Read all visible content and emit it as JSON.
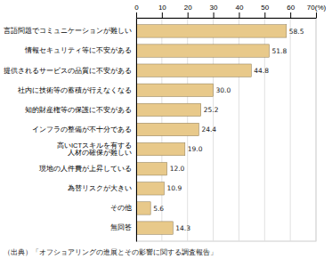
{
  "chart_data": {
    "type": "bar",
    "orientation": "horizontal",
    "categories": [
      "言語問題でコミュニケーションが難しい",
      "情報セキュリティ等に不安がある",
      "提供されるサービスの品質に不安がある",
      "社内に技術等の蓄積が行えなくなる",
      "知的財産権等の保護に不安がある",
      "インフラの整備が不十分である",
      "高いICTスキルを有する\n人材の確保が難しい",
      "現地の人件費が上昇している",
      "為替リスクが大きい",
      "その他",
      "無回答"
    ],
    "values": [
      58.5,
      51.8,
      44.8,
      30.0,
      25.2,
      24.4,
      19.0,
      12.0,
      10.9,
      5.6,
      14.3
    ],
    "value_labels": [
      "58.5",
      "51.8",
      "44.8",
      "30.0",
      "25.2",
      "24.4",
      "19.0",
      "12.0",
      "10.9",
      "5.6",
      "14.3"
    ],
    "data_labels": true,
    "color": "#e8c98a",
    "xlim": [
      0,
      70
    ],
    "xticks": [
      0,
      10,
      20,
      30,
      40,
      50,
      60,
      {
        "value": 70,
        "label": "70(%)"
      }
    ],
    "grid": true,
    "annotations": [
      "（出典）「オフショアリングの進展とその影響に関する調査報告」"
    ]
  }
}
